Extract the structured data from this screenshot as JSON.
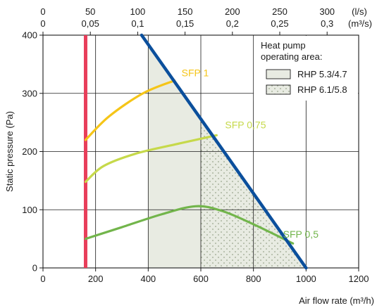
{
  "chart_data": {
    "type": "line",
    "xlabel": "Air flow rate (m³/h)",
    "ylabel": "Static pressure (Pa)",
    "xlim": [
      0,
      1200
    ],
    "ylim": [
      0,
      400
    ],
    "x_ticks": [
      "0",
      "200",
      "400",
      "600",
      "800",
      "1000",
      "1200"
    ],
    "y_ticks": [
      "0",
      "100",
      "200",
      "300",
      "400"
    ],
    "secondary_x_axes": [
      {
        "unit": "(l/s)",
        "ticks": [
          "0",
          "50",
          "100",
          "150",
          "200",
          "250",
          "300"
        ],
        "tick_values_m3h": [
          0,
          180,
          360,
          540,
          720,
          900,
          1080
        ]
      },
      {
        "unit": "(m³/s)",
        "ticks": [
          "0",
          "0,05",
          "0,1",
          "0,15",
          "0,2",
          "0,25",
          "0,3"
        ],
        "tick_values_m3h": [
          0,
          180,
          360,
          540,
          720,
          900,
          1080
        ]
      }
    ],
    "grid": true,
    "minimum_flow_line": {
      "x": 162,
      "y_range": [
        0,
        400
      ],
      "color": "#e83e5a"
    },
    "maximum_curve": {
      "color": "#0b4f9c",
      "points": [
        [
          375,
          400
        ],
        [
          1000,
          0
        ]
      ]
    },
    "series": [
      {
        "name": "SFP 1",
        "color": "#f5c518",
        "points": [
          [
            162,
            220
          ],
          [
            250,
            260
          ],
          [
            380,
            300
          ],
          [
            500,
            322
          ]
        ]
      },
      {
        "name": "SFP 0,75",
        "color": "#c6d94a",
        "points": [
          [
            162,
            148
          ],
          [
            230,
            175
          ],
          [
            350,
            196
          ],
          [
            500,
            212
          ],
          [
            660,
            228
          ]
        ]
      },
      {
        "name": "SFP 0,5",
        "color": "#72b54b",
        "points": [
          [
            162,
            50
          ],
          [
            300,
            70
          ],
          [
            450,
            92
          ],
          [
            580,
            106
          ],
          [
            680,
            98
          ],
          [
            800,
            75
          ],
          [
            950,
            42
          ]
        ]
      }
    ],
    "legend": {
      "title": "Heat pump operating area:",
      "position": "top-right",
      "entries": [
        {
          "label": "RHP 5.3/4.7",
          "fill": "#e8ebe2"
        },
        {
          "label": "RHP 6.1/5.8",
          "fill": "#e8ebe2",
          "pattern": "dots"
        }
      ]
    },
    "areas": [
      {
        "legend": "RHP 5.3/4.7",
        "x_range": [
          400,
          600
        ]
      },
      {
        "legend": "RHP 6.1/5.8",
        "x_range": [
          600,
          1000
        ]
      }
    ]
  }
}
